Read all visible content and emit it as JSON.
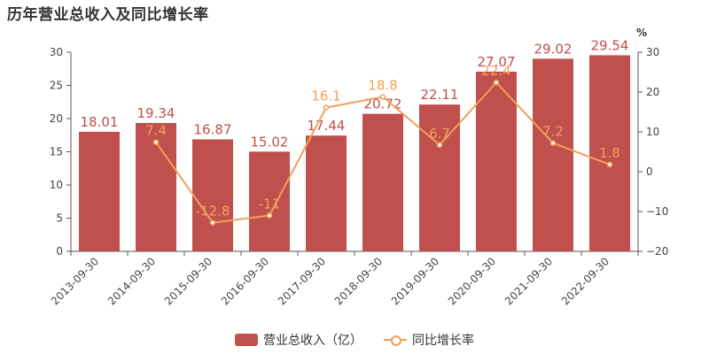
{
  "title": "历年营业总收入及同比增长率",
  "chart_data": {
    "type": "bar",
    "categories": [
      "2013-09-30",
      "2014-09-30",
      "2015-09-30",
      "2016-09-30",
      "2017-09-30",
      "2018-09-30",
      "2019-09-30",
      "2020-09-30",
      "2021-09-30",
      "2022-09-30"
    ],
    "series": [
      {
        "name": "营业总收入（亿）",
        "type": "bar",
        "axis": "left",
        "color": "#c0504d",
        "values": [
          18.01,
          19.34,
          16.87,
          15.02,
          17.44,
          20.72,
          22.11,
          27.07,
          29.02,
          29.54
        ],
        "labels": [
          "18.01",
          "19.34",
          "16.87",
          "15.02",
          "17.44",
          "20.72",
          "22.11",
          "27.07",
          "29.02",
          "29.54"
        ]
      },
      {
        "name": "同比增长率",
        "type": "line",
        "axis": "right",
        "color": "#f0a05a",
        "values": [
          null,
          7.4,
          -12.8,
          -11,
          16.1,
          18.8,
          6.7,
          22.4,
          7.2,
          1.8
        ],
        "labels": [
          "",
          "7.4",
          "-12.8",
          "-11",
          "16.1",
          "18.8",
          "6.7",
          "22.4",
          "7.2",
          "1.8"
        ]
      }
    ],
    "y_left": {
      "range": [
        0,
        30
      ],
      "ticks": [
        "0",
        "5",
        "10",
        "15",
        "20",
        "25",
        "30"
      ]
    },
    "y_right": {
      "range": [
        -20,
        30
      ],
      "ticks": [
        "−20",
        "−10",
        "0",
        "10",
        "20",
        "30"
      ],
      "unit": "%"
    },
    "grid": false,
    "legend": "bottom-center"
  }
}
